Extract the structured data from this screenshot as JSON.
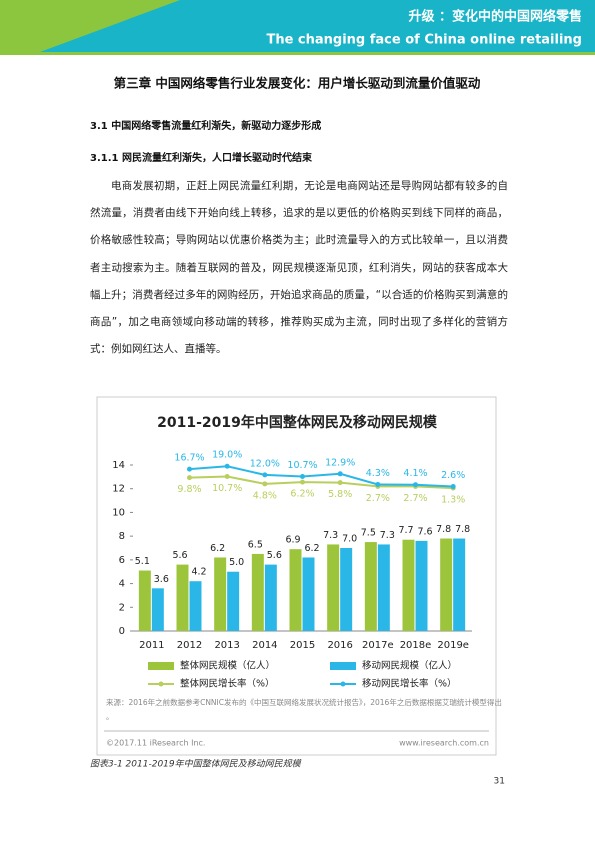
{
  "header": {
    "title": "升级 ：变化中的中国网络零售",
    "subtitle": "The changing face of China online retailing"
  },
  "chapter_title": "第三章  中国网络零售行业发展变化：用户增长驱动到流量价值驱动",
  "section": "3.1  中国网络零售流量红利渐失，新驱动力逐步形成",
  "subsection": "3.1.1  网民流量红利渐失，人口增长驱动时代结束",
  "paragraph": "电商发展初期，正赶上网民流量红利期，无论是电商网站还是导购网站都有较多的自然流量，消费者由线下开始向线上转移，追求的是以更低的价格购买到线下同样的商品，价格敏感性较高；导购网站以优惠价格类为主；此时流量导入的方式比较单一，且以消费者主动搜索为主。随着互联网的普及，网民规模逐渐见顶，红利消失，网站的获客成本大幅上升；消费者经过多年的网购经历，开始追求商品的质量，“以合适的价格购买到满意的商品”，加之电商领域向移动端的转移，推荐购买成为主流，同时出现了多样化的营销方式：例如网红达人、直播等。",
  "chart_data": {
    "type": "bar",
    "title": "2011-2019年中国整体网民及移动网民规模",
    "categories": [
      "2011",
      "2012",
      "2013",
      "2014",
      "2015",
      "2016",
      "2017e",
      "2018e",
      "2019e"
    ],
    "ylim": [
      0,
      14
    ],
    "yticks": [
      0,
      2,
      4,
      6,
      8,
      10,
      12,
      14
    ],
    "y2lim": [
      -114,
      20
    ],
    "series": [
      {
        "name": "整体网民规模（亿人）",
        "color": "#9dc53c",
        "type": "bar",
        "values": [
          5.1,
          5.6,
          6.2,
          6.5,
          6.9,
          7.3,
          7.5,
          7.7,
          7.8
        ],
        "value_labels": [
          "5.1",
          "5.6",
          "6.2",
          "6.5",
          "6.9",
          "7.3",
          "7.5",
          "7.7",
          "7.8"
        ]
      },
      {
        "name": "移动网民规模（亿人）",
        "color": "#2ab7e8",
        "type": "bar",
        "values": [
          3.6,
          4.2,
          5,
          5.6,
          6.2,
          7,
          7.3,
          7.6,
          7.8
        ],
        "value_labels": [
          "3.6",
          "4.2",
          "5.0",
          "5.6",
          "6.2",
          "7.0",
          "7.3",
          "7.6",
          "7.8"
        ]
      },
      {
        "name": "整体网民增长率（%）",
        "color": "#b8cf5e",
        "type": "line",
        "axis": "y2",
        "values": [
          null,
          9.8,
          10.7,
          4.8,
          6.2,
          5.8,
          2.7,
          2.7,
          1.3
        ],
        "value_labels": [
          null,
          "9.8%",
          "10.7%",
          "4.8%",
          "6.2%",
          "5.8%",
          "2.7%",
          "2.7%",
          "1.3%"
        ]
      },
      {
        "name": "移动网民增长率（%）",
        "color": "#2ab7e8",
        "type": "line",
        "axis": "y2",
        "values": [
          null,
          16.7,
          19,
          12,
          10.7,
          12.9,
          4.3,
          4.1,
          2.6
        ],
        "value_labels": [
          null,
          "16.7%",
          "19.0%",
          "12.0%",
          "10.7%",
          "12.9%",
          "4.3%",
          "4.1%",
          "2.6%"
        ]
      }
    ],
    "source": "来源：2016年之前数据参考CNNIC发布的《中国互联网络发展状况统计报告》，2016年之后数据根据艾瑞统计模型得出。",
    "copyright": "©2017.11 iResearch Inc.",
    "website": "www.iresearch.com.cn"
  },
  "caption": "图表3-1    2011-2019年中国整体网民及移动网民规模",
  "page_number": "31"
}
